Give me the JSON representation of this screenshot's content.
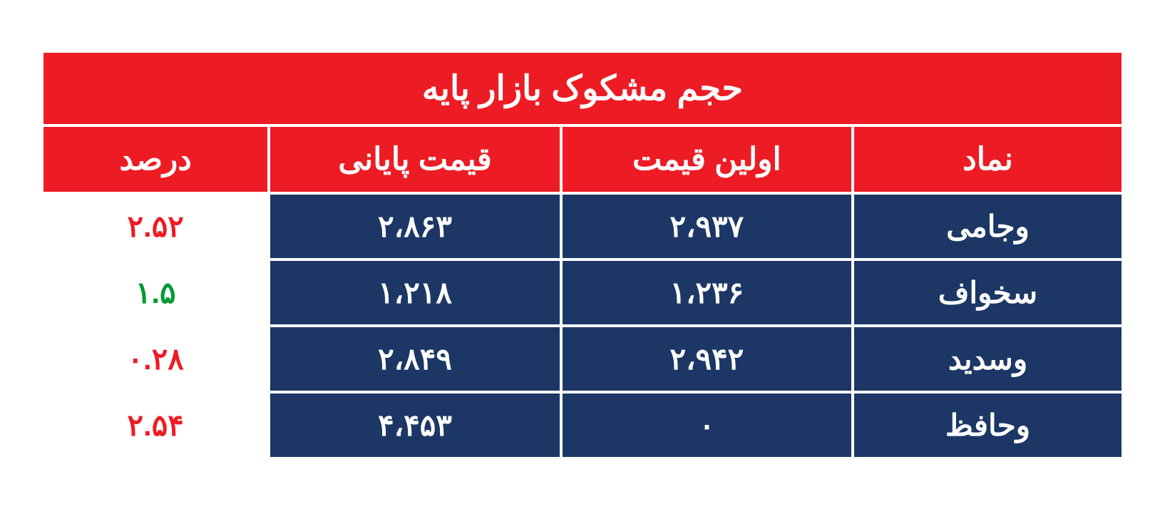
{
  "table": {
    "title": "حجم مشکوک بازار پایه",
    "headers": {
      "symbol": "نماد",
      "first_price": "اولین قیمت",
      "last_price": "قیمت پایانی",
      "percent": "درصد"
    },
    "rows": [
      {
        "symbol": "وجامی",
        "first_price": "۲،۹۳۷",
        "last_price": "۲،۸۶۳",
        "percent": "۲.۵۲",
        "percent_color": "red"
      },
      {
        "symbol": "سخواف",
        "first_price": "۱،۲۳۶",
        "last_price": "۱،۲۱۸",
        "percent": "۱.۵",
        "percent_color": "green"
      },
      {
        "symbol": "وسدید",
        "first_price": "۲،۹۴۲",
        "last_price": "۲،۸۴۹",
        "percent": "۰.۲۸",
        "percent_color": "red"
      },
      {
        "symbol": "وحافظ",
        "first_price": "۰",
        "last_price": "۴،۴۵۳",
        "percent": "۲.۵۴",
        "percent_color": "red"
      }
    ],
    "colors": {
      "header_bg": "#ed1c24",
      "header_fg": "#ffffff",
      "cell_bg": "#1c3766",
      "cell_fg": "#ffffff",
      "percent_bg": "#ffffff",
      "red": "#ed1c24",
      "green": "#009933",
      "border": "#ffffff"
    }
  }
}
